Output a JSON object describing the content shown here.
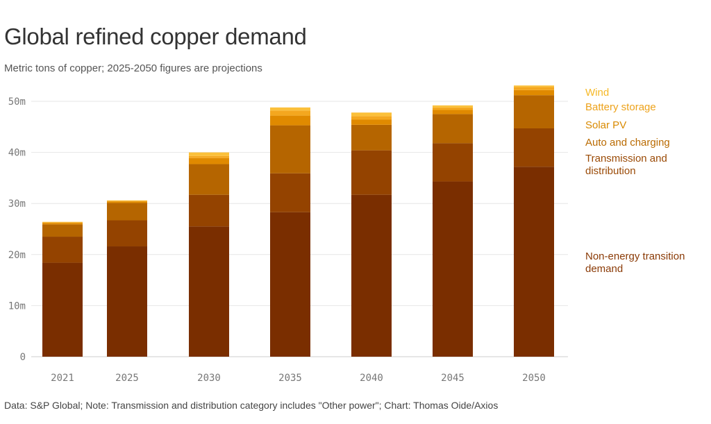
{
  "header": {
    "title": "Global refined copper demand",
    "subtitle": "Metric tons of copper; 2025-2050 figures are projections"
  },
  "footer": {
    "source": "Data: S&P Global; Note: Transmission and distribution category includes \"Other power\"; Chart: Thomas Oide/Axios"
  },
  "chart_data": {
    "type": "bar",
    "stacked": true,
    "title": "Global refined copper demand",
    "subtitle": "Metric tons of copper; 2025-2050 figures are projections",
    "xlabel": "",
    "ylabel": "",
    "ylim": [
      0,
      50000000
    ],
    "yticks": [
      0,
      10000000,
      20000000,
      30000000,
      40000000,
      50000000
    ],
    "ytick_labels": [
      "0",
      "10m",
      "20m",
      "30m",
      "40m",
      "50m"
    ],
    "grid": true,
    "legend_position": "right",
    "categories": [
      "2021",
      "2025",
      "2030",
      "2035",
      "2040",
      "2045",
      "2050"
    ],
    "series": [
      {
        "name": "Non-energy transition demand",
        "color": "#7a2e00",
        "label_color": "#8a3a06",
        "values": [
          18400000,
          21600000,
          25500000,
          28300000,
          31700000,
          34300000,
          37200000
        ]
      },
      {
        "name": "Transmission and distribution",
        "color": "#944300",
        "label_color": "#9a4a06",
        "values": [
          5100000,
          5100000,
          6200000,
          7600000,
          8700000,
          7500000,
          7500000
        ]
      },
      {
        "name": "Auto and charging",
        "color": "#b56500",
        "label_color": "#b96a00",
        "values": [
          2400000,
          3400000,
          6000000,
          9400000,
          5000000,
          5700000,
          6500000
        ]
      },
      {
        "name": "Solar PV",
        "color": "#e08a00",
        "label_color": "#d98a00",
        "values": [
          300000,
          300000,
          1200000,
          1900000,
          1000000,
          800000,
          1000000
        ]
      },
      {
        "name": "Battery storage",
        "color": "#f4a71f",
        "label_color": "#eda21a",
        "values": [
          100000,
          100000,
          400000,
          1000000,
          700000,
          500000,
          600000
        ]
      },
      {
        "name": "Wind",
        "color": "#fbc03a",
        "label_color": "#f6b825",
        "values": [
          100000,
          100000,
          700000,
          600000,
          700000,
          400000,
          300000
        ]
      }
    ]
  }
}
